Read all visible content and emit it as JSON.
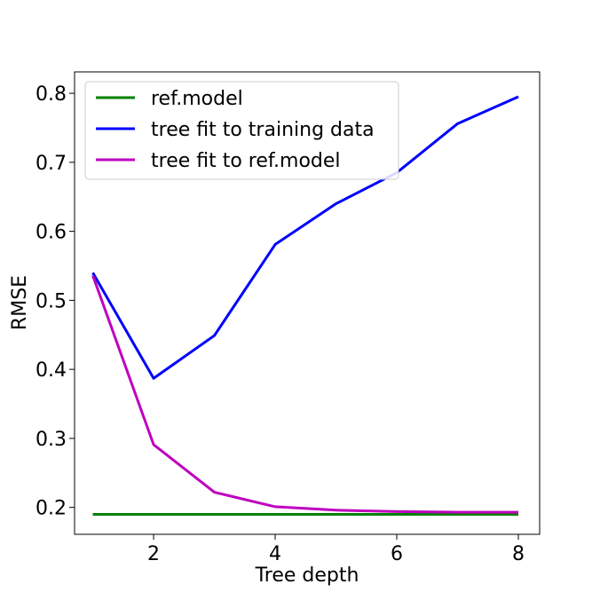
{
  "chart_data": {
    "type": "line",
    "title": "",
    "xlabel": "Tree depth",
    "ylabel": "RMSE",
    "xlim": [
      0.7,
      8.35
    ],
    "ylim": [
      0.161,
      0.831
    ],
    "xticks": [
      2,
      4,
      6,
      8
    ],
    "yticks": [
      0.2,
      0.3,
      0.4,
      0.5,
      0.6,
      0.7,
      0.8
    ],
    "xtick_labels": [
      "2",
      "4",
      "6",
      "8"
    ],
    "ytick_labels": [
      "0.2",
      "0.3",
      "0.4",
      "0.5",
      "0.6",
      "0.7",
      "0.8"
    ],
    "grid": false,
    "legend_position": "top-left",
    "x": [
      1,
      2,
      3,
      4,
      5,
      6,
      7,
      8
    ],
    "series": [
      {
        "name": "ref.model",
        "color": "#008000",
        "values": [
          0.19,
          0.19,
          0.19,
          0.19,
          0.19,
          0.19,
          0.19,
          0.19
        ]
      },
      {
        "name": "tree fit to training data",
        "color": "#0000ff",
        "values": [
          0.54,
          0.387,
          0.449,
          0.581,
          0.64,
          0.685,
          0.756,
          0.795
        ]
      },
      {
        "name": "tree fit to ref.model",
        "color": "#bf00bf",
        "values": [
          0.536,
          0.291,
          0.222,
          0.201,
          0.196,
          0.194,
          0.193,
          0.193
        ]
      }
    ]
  }
}
